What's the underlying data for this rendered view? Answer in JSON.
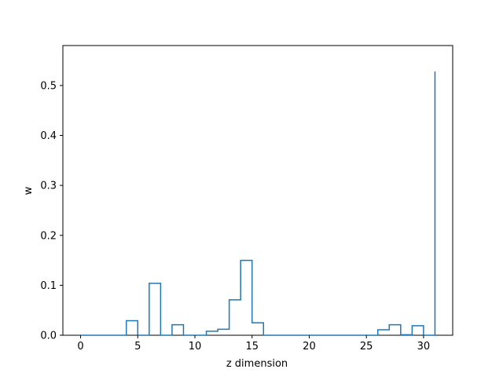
{
  "chart_data": {
    "type": "line",
    "drawstyle": "steps-post",
    "title": "",
    "xlabel": "z dimension",
    "ylabel": "w",
    "xlim": [
      -1.55,
      32.55
    ],
    "ylim": [
      0,
      0.58
    ],
    "xticks": [
      0,
      5,
      10,
      15,
      20,
      25,
      30
    ],
    "yticks": [
      0.0,
      0.1,
      0.2,
      0.3,
      0.4,
      0.5
    ],
    "xtick_labels": [
      "0",
      "5",
      "10",
      "15",
      "20",
      "25",
      "30"
    ],
    "ytick_labels": [
      "0.0",
      "0.1",
      "0.2",
      "0.3",
      "0.4",
      "0.5"
    ],
    "grid": false,
    "color": "#1f77b4",
    "x": [
      0,
      1,
      2,
      3,
      4,
      5,
      6,
      7,
      8,
      9,
      10,
      11,
      12,
      13,
      14,
      15,
      16,
      17,
      18,
      19,
      20,
      21,
      22,
      23,
      24,
      25,
      26,
      27,
      28,
      29,
      30,
      31
    ],
    "values": [
      0,
      0,
      0,
      0,
      0.029,
      0,
      0.104,
      0,
      0.021,
      0,
      0,
      0.008,
      0.012,
      0.071,
      0.15,
      0.025,
      0,
      0,
      0,
      0,
      0,
      0,
      0,
      0,
      0,
      0,
      0.011,
      0.021,
      0.001,
      0.019,
      0,
      0.528
    ]
  }
}
